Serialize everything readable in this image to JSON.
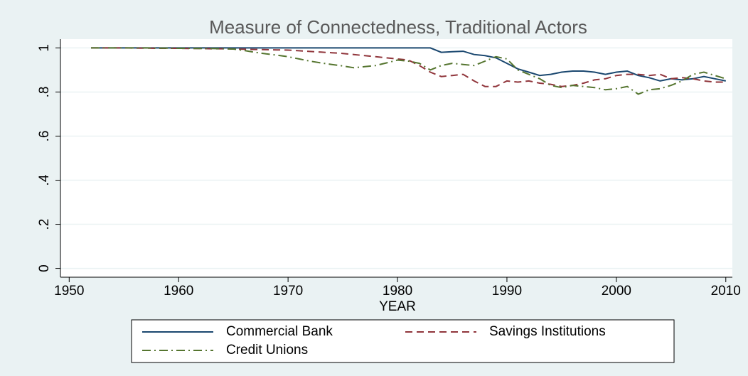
{
  "chart_data": {
    "type": "line",
    "title": "Measure of Connectedness, Traditional Actors",
    "xlabel": "YEAR",
    "x": [
      1952,
      1953,
      1954,
      1955,
      1956,
      1957,
      1958,
      1959,
      1960,
      1961,
      1962,
      1963,
      1964,
      1965,
      1966,
      1967,
      1968,
      1969,
      1970,
      1971,
      1972,
      1973,
      1974,
      1975,
      1976,
      1977,
      1978,
      1979,
      1980,
      1981,
      1982,
      1983,
      1984,
      1985,
      1986,
      1987,
      1988,
      1989,
      1990,
      1991,
      1992,
      1993,
      1994,
      1995,
      1996,
      1997,
      1998,
      1999,
      2000,
      2001,
      2002,
      2003,
      2004,
      2005,
      2006,
      2007,
      2008,
      2009,
      2010
    ],
    "series": [
      {
        "name": "Commercial Bank",
        "color": "#1a476f",
        "line_style": "solid",
        "values": [
          1,
          1,
          1,
          1,
          1,
          1,
          1,
          1,
          1,
          1,
          1,
          1,
          1,
          1,
          1,
          1,
          1,
          1,
          1,
          1,
          1,
          1,
          1,
          1,
          1,
          1,
          1,
          1,
          1,
          1,
          1,
          1,
          0.98,
          0.983,
          0.985,
          0.97,
          0.965,
          0.955,
          0.93,
          0.905,
          0.89,
          0.875,
          0.88,
          0.89,
          0.895,
          0.895,
          0.89,
          0.88,
          0.89,
          0.895,
          0.875,
          0.865,
          0.85,
          0.86,
          0.855,
          0.86,
          0.87,
          0.86,
          0.85
        ]
      },
      {
        "name": "Savings Institutions",
        "color": "#90353b",
        "line_style": "dash",
        "values": [
          1,
          1,
          1,
          1,
          0.999,
          0.999,
          0.998,
          0.998,
          0.998,
          0.997,
          0.997,
          0.996,
          0.996,
          0.995,
          0.994,
          0.993,
          0.992,
          0.991,
          0.99,
          0.987,
          0.984,
          0.981,
          0.978,
          0.975,
          0.97,
          0.965,
          0.96,
          0.955,
          0.95,
          0.945,
          0.92,
          0.89,
          0.87,
          0.875,
          0.88,
          0.85,
          0.825,
          0.825,
          0.85,
          0.845,
          0.85,
          0.84,
          0.835,
          0.825,
          0.83,
          0.84,
          0.855,
          0.86,
          0.875,
          0.88,
          0.88,
          0.875,
          0.88,
          0.86,
          0.865,
          0.86,
          0.85,
          0.845,
          0.845
        ]
      },
      {
        "name": "Credit Unions",
        "color": "#55752f",
        "line_style": "dashdot",
        "values": [
          1,
          1,
          1,
          1,
          1,
          1,
          0.999,
          0.999,
          0.998,
          0.998,
          0.997,
          0.997,
          0.996,
          0.995,
          0.988,
          0.98,
          0.973,
          0.967,
          0.96,
          0.95,
          0.94,
          0.932,
          0.925,
          0.918,
          0.91,
          0.915,
          0.92,
          0.932,
          0.945,
          0.94,
          0.93,
          0.9,
          0.92,
          0.93,
          0.925,
          0.92,
          0.94,
          0.96,
          0.95,
          0.9,
          0.88,
          0.86,
          0.83,
          0.82,
          0.83,
          0.825,
          0.82,
          0.81,
          0.815,
          0.825,
          0.79,
          0.81,
          0.815,
          0.83,
          0.85,
          0.88,
          0.89,
          0.875,
          0.86
        ]
      }
    ],
    "xlim": [
      1949.2,
      2010.6
    ],
    "xticks": [
      1950,
      1960,
      1970,
      1980,
      1990,
      2000,
      2010
    ],
    "ylim": [
      -0.04,
      1.04
    ],
    "yticks": [
      0,
      {
        "value": 0.2,
        "label": ".2"
      },
      {
        "value": 0.4,
        "label": ".4"
      },
      {
        "value": 0.6,
        "label": ".6"
      },
      {
        "value": 0.8,
        "label": ".8"
      },
      1
    ],
    "grid": true,
    "legend": "bottom"
  }
}
